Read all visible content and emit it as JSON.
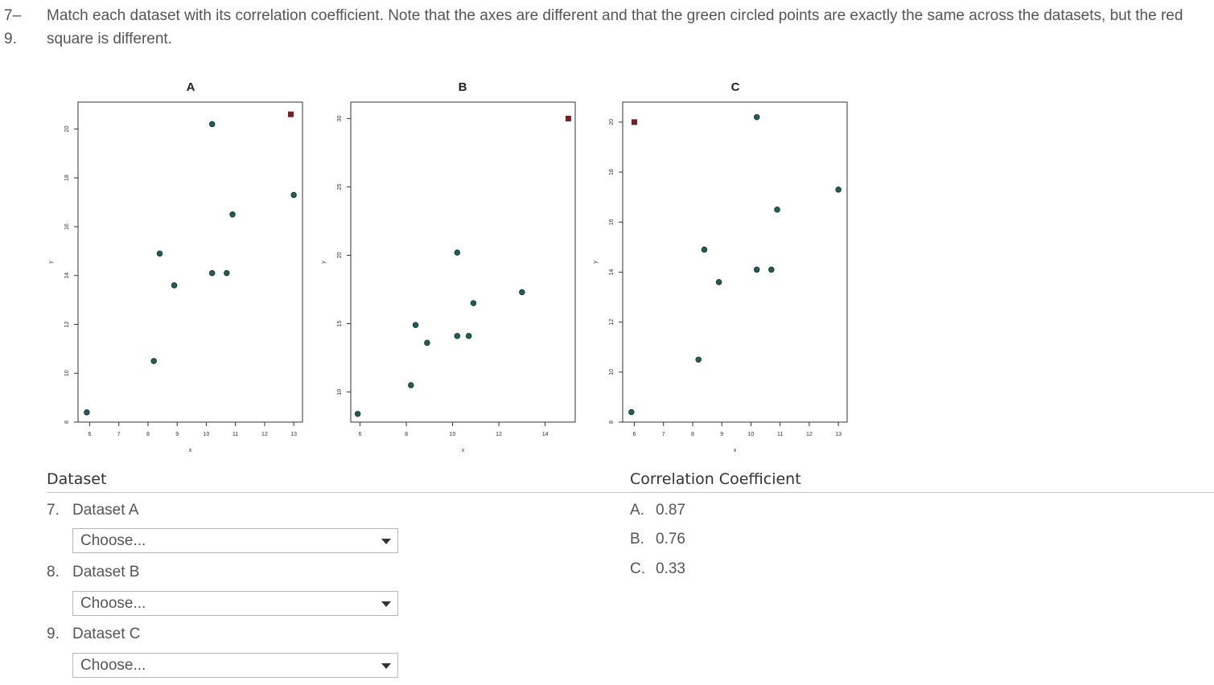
{
  "question": {
    "number": "7–\n9.",
    "text": "Match each dataset with its correlation coefficient. Note that the axes are different and that the green circled points are exactly the same across the datasets, but the red square is different."
  },
  "colors": {
    "point": "#1f5e5a",
    "square": "#7a1f1f",
    "axis": "#333333"
  },
  "chart_data": [
    {
      "type": "scatter",
      "title": "A",
      "xlabel": "x",
      "ylabel": "y",
      "xlim": [
        5.6,
        13.3
      ],
      "ylim": [
        8,
        21.1
      ],
      "xticks": [
        6,
        7,
        8,
        9,
        10,
        11,
        12,
        13
      ],
      "yticks": [
        8,
        10,
        12,
        14,
        16,
        18,
        20
      ],
      "points": [
        [
          5.9,
          8.4
        ],
        [
          8.2,
          10.5
        ],
        [
          8.4,
          14.9
        ],
        [
          8.9,
          13.6
        ],
        [
          10.2,
          20.2
        ],
        [
          10.2,
          14.1
        ],
        [
          10.7,
          14.1
        ],
        [
          10.9,
          16.5
        ],
        [
          13.0,
          17.3
        ]
      ],
      "square": [
        12.9,
        20.6
      ]
    },
    {
      "type": "scatter",
      "title": "B",
      "xlabel": "x",
      "ylabel": "y",
      "xlim": [
        5.6,
        15.3
      ],
      "ylim": [
        7.8,
        31.2
      ],
      "xticks": [
        6,
        8,
        10,
        12,
        14
      ],
      "yticks": [
        10,
        15,
        20,
        25,
        30
      ],
      "points": [
        [
          5.9,
          8.4
        ],
        [
          8.2,
          10.5
        ],
        [
          8.4,
          14.9
        ],
        [
          8.9,
          13.6
        ],
        [
          10.2,
          20.2
        ],
        [
          10.2,
          14.1
        ],
        [
          10.7,
          14.1
        ],
        [
          10.9,
          16.5
        ],
        [
          13.0,
          17.3
        ]
      ],
      "square": [
        15.0,
        30.0
      ]
    },
    {
      "type": "scatter",
      "title": "C",
      "xlabel": "x",
      "ylabel": "y",
      "xlim": [
        5.6,
        13.3
      ],
      "ylim": [
        8,
        20.8
      ],
      "xticks": [
        6,
        7,
        8,
        9,
        10,
        11,
        12,
        13
      ],
      "yticks": [
        8,
        10,
        12,
        14,
        16,
        18,
        20
      ],
      "points": [
        [
          5.9,
          8.4
        ],
        [
          8.2,
          10.5
        ],
        [
          8.4,
          14.9
        ],
        [
          8.9,
          13.6
        ],
        [
          10.2,
          20.2
        ],
        [
          10.2,
          14.1
        ],
        [
          10.7,
          14.1
        ],
        [
          10.9,
          16.5
        ],
        [
          13.0,
          17.3
        ]
      ],
      "square": [
        6.0,
        20.0
      ]
    }
  ],
  "headers": {
    "dataset": "Dataset",
    "coefficient": "Correlation Coefficient"
  },
  "items": [
    {
      "num": "7.",
      "label": "Dataset A",
      "select_value": "Choose..."
    },
    {
      "num": "8.",
      "label": "Dataset B",
      "select_value": "Choose..."
    },
    {
      "num": "9.",
      "label": "Dataset C",
      "select_value": "Choose..."
    }
  ],
  "options": [
    {
      "letter": "A.",
      "value": "0.87"
    },
    {
      "letter": "B.",
      "value": "0.76"
    },
    {
      "letter": "C.",
      "value": "0.33"
    }
  ]
}
